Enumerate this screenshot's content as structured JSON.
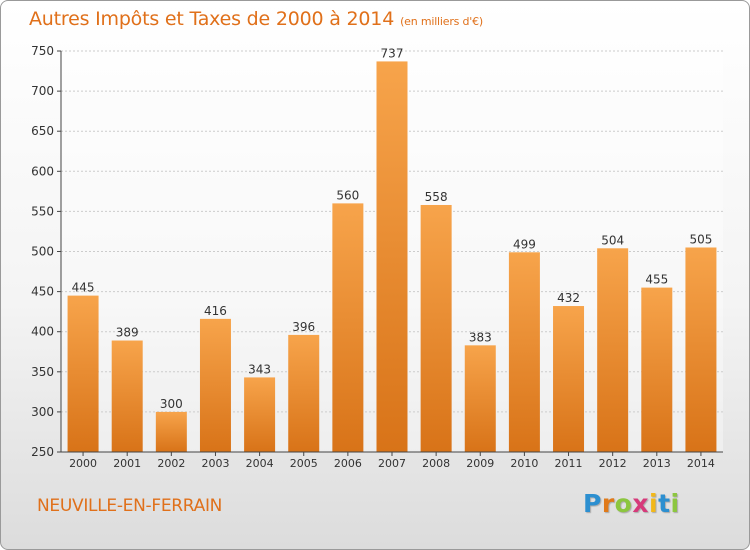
{
  "title": "Autres Impôts et Taxes de 2000 à 2014",
  "unit": "(en milliers d'€)",
  "place": "NEUVILLE-EN-FERRAIN",
  "logo": {
    "letters": [
      "P",
      "r",
      "o",
      "x",
      "i",
      "t",
      "i"
    ],
    "colors": [
      "#2c8fd0",
      "#e07a1a",
      "#8cc63f",
      "#d63a7a",
      "#f2b81a",
      "#2c8fd0",
      "#8cc63f"
    ]
  },
  "colors": {
    "accent": "#e0701a",
    "bar_light": "#f7a44b",
    "bar_dark": "#d87318",
    "axis": "#444444",
    "grid": "#cccccc"
  },
  "chart_data": {
    "type": "bar",
    "categories": [
      "2000",
      "2001",
      "2002",
      "2003",
      "2004",
      "2005",
      "2006",
      "2007",
      "2008",
      "2009",
      "2010",
      "2011",
      "2012",
      "2013",
      "2014"
    ],
    "values": [
      445,
      389,
      300,
      416,
      343,
      396,
      560,
      737,
      558,
      383,
      499,
      432,
      504,
      455,
      505
    ],
    "ylim": [
      250,
      750
    ],
    "yticks": [
      250,
      300,
      350,
      400,
      450,
      500,
      550,
      600,
      650,
      700,
      750
    ],
    "grid": "horizontal dotted",
    "legend": "none"
  }
}
